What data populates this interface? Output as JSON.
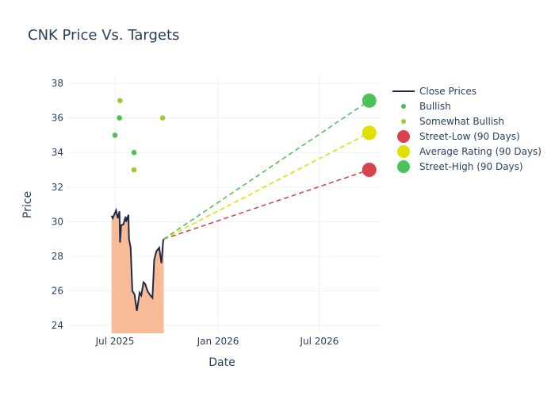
{
  "chart_data": {
    "type": "line",
    "title": "CNK Price Vs. Targets",
    "xlabel": "Date",
    "ylabel": "Price",
    "ylim": [
      23.6,
      38.5
    ],
    "xlim": [
      "2025-05-05",
      "2026-10-28"
    ],
    "yticks": [
      24,
      26,
      28,
      30,
      32,
      34,
      36,
      38
    ],
    "xticks": [
      {
        "date": "2025-07-01",
        "label": "Jul 2025"
      },
      {
        "date": "2026-01-01",
        "label": "Jan 2026"
      },
      {
        "date": "2026-07-01",
        "label": "Jul 2026"
      }
    ],
    "grid": true,
    "legend_position": "right",
    "colors": {
      "close": "#1f2a44",
      "fill": "#f8b48c",
      "bullish": "#4cc34f",
      "somewhat_bullish": "#9acd32",
      "low": "#d9434f",
      "avg": "#e0e000",
      "high": "#4cc35a"
    },
    "close_prices": [
      [
        "2025-06-25",
        30.35
      ],
      [
        "2025-06-27",
        30.2
      ],
      [
        "2025-07-03",
        30.66
      ],
      [
        "2025-07-06",
        30.2
      ],
      [
        "2025-07-09",
        30.6
      ],
      [
        "2025-07-10",
        28.8
      ],
      [
        "2025-07-12",
        29.8
      ],
      [
        "2025-07-16",
        29.85
      ],
      [
        "2025-07-20",
        30.3
      ],
      [
        "2025-07-21",
        30.0
      ],
      [
        "2025-07-25",
        30.4
      ],
      [
        "2025-07-26",
        29.0
      ],
      [
        "2025-07-29",
        28.5
      ],
      [
        "2025-08-01",
        26.0
      ],
      [
        "2025-08-05",
        25.8
      ],
      [
        "2025-08-09",
        24.85
      ],
      [
        "2025-08-14",
        25.9
      ],
      [
        "2025-08-17",
        25.75
      ],
      [
        "2025-08-21",
        26.5
      ],
      [
        "2025-08-24",
        26.4
      ],
      [
        "2025-08-28",
        26.0
      ],
      [
        "2025-09-01",
        25.8
      ],
      [
        "2025-09-06",
        25.6
      ],
      [
        "2025-09-09",
        27.8
      ],
      [
        "2025-09-13",
        28.3
      ],
      [
        "2025-09-18",
        28.5
      ],
      [
        "2025-09-22",
        27.6
      ],
      [
        "2025-09-25",
        28.9
      ],
      [
        "2025-09-26",
        29.0
      ]
    ],
    "bullish": [
      [
        "2025-07-01",
        35
      ],
      [
        "2025-07-09",
        36
      ],
      [
        "2025-08-04",
        34
      ]
    ],
    "somewhat_bullish": [
      [
        "2025-07-10",
        37
      ],
      [
        "2025-08-04",
        33
      ],
      [
        "2025-09-24",
        36
      ]
    ],
    "targets": {
      "date": "2026-09-28",
      "street_low": 33,
      "average": 35.14,
      "street_high": 37
    },
    "legend": [
      "Close Prices",
      "Bullish",
      "Somewhat Bullish",
      "Street-Low (90 Days)",
      "Average Rating (90 Days)",
      "Street-High (90 Days)"
    ]
  }
}
